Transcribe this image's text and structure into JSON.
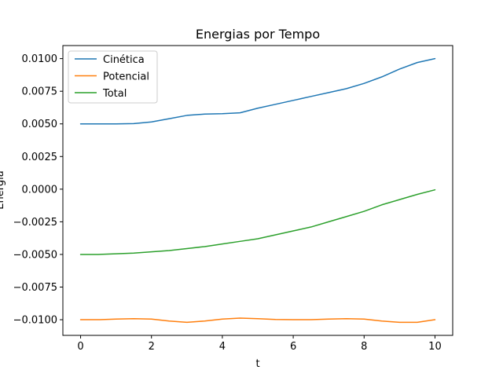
{
  "chart_data": {
    "type": "line",
    "title": "Energias por Tempo",
    "xlabel": "t",
    "ylabel": "Energia",
    "xlim": [
      -0.5,
      10.5
    ],
    "ylim": [
      -0.0112,
      0.011
    ],
    "grid": false,
    "legend_position": "top-left",
    "x_ticks": [
      0,
      2,
      4,
      6,
      8,
      10
    ],
    "x_tick_labels": [
      "0",
      "2",
      "4",
      "6",
      "8",
      "10"
    ],
    "y_ticks": [
      -0.01,
      -0.0075,
      -0.005,
      -0.0025,
      0,
      0.0025,
      0.005,
      0.0075,
      0.01
    ],
    "y_tick_labels": [
      "−0.0100",
      "−0.0075",
      "−0.0050",
      "−0.0025",
      "0.0000",
      "0.0025",
      "0.0050",
      "0.0075",
      "0.0100"
    ],
    "x": [
      0,
      0.5,
      1,
      1.5,
      2,
      2.5,
      3,
      3.5,
      4,
      4.5,
      5,
      5.5,
      6,
      6.5,
      7,
      7.5,
      8,
      8.5,
      9,
      9.5,
      10
    ],
    "series": [
      {
        "name": "Cinética",
        "color": "#1f77b4",
        "values": [
          0.005,
          0.005,
          0.005,
          0.00502,
          0.00515,
          0.0054,
          0.00565,
          0.00575,
          0.00578,
          0.00585,
          0.0062,
          0.0065,
          0.0068,
          0.0071,
          0.0074,
          0.0077,
          0.0081,
          0.0086,
          0.0092,
          0.0097,
          0.01
        ]
      },
      {
        "name": "Potencial",
        "color": "#ff7f0e",
        "values": [
          -0.01,
          -0.01,
          -0.00995,
          -0.00992,
          -0.00995,
          -0.0101,
          -0.0102,
          -0.0101,
          -0.00995,
          -0.00988,
          -0.00992,
          -0.00998,
          -0.01,
          -0.01,
          -0.00995,
          -0.00992,
          -0.00995,
          -0.0101,
          -0.0102,
          -0.0102,
          -0.01
        ]
      },
      {
        "name": "Total",
        "color": "#2ca02c",
        "values": [
          -0.005,
          -0.005,
          -0.00495,
          -0.0049,
          -0.0048,
          -0.0047,
          -0.00455,
          -0.0044,
          -0.0042,
          -0.004,
          -0.0038,
          -0.0035,
          -0.0032,
          -0.0029,
          -0.0025,
          -0.0021,
          -0.0017,
          -0.0012,
          -0.0008,
          -0.0004,
          -5e-05
        ]
      }
    ]
  }
}
